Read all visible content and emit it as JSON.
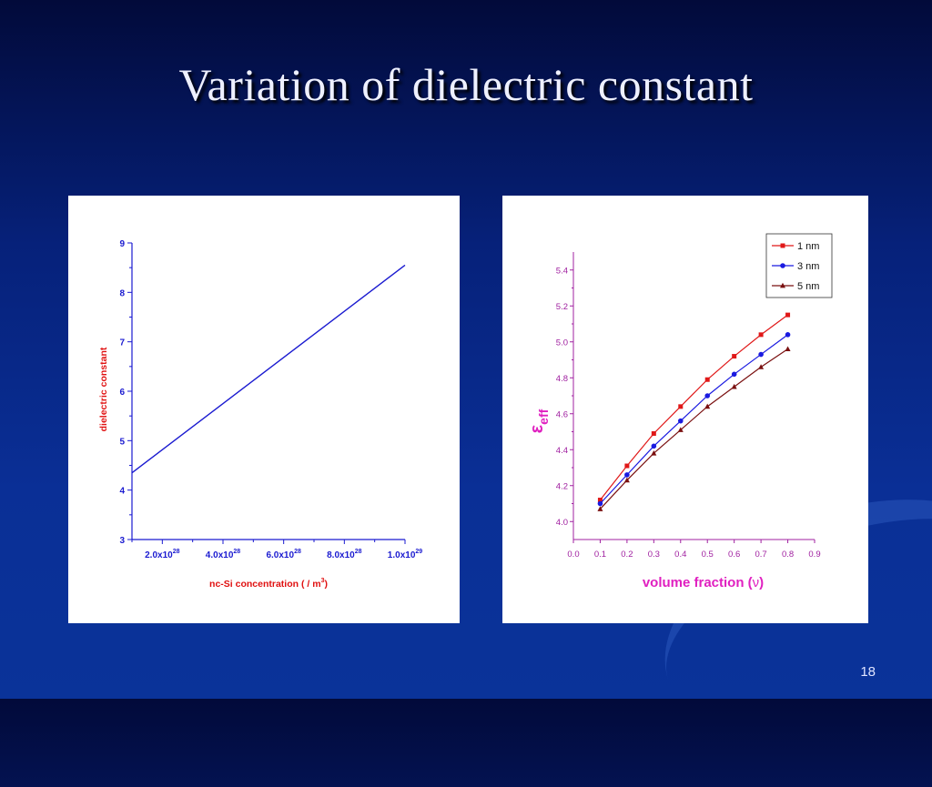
{
  "slide": {
    "title": "Variation of  dielectric constant",
    "page_number": "18"
  },
  "chart_data": [
    {
      "type": "line",
      "xlabel": "nc-Si concentration",
      "xlabel_unit": "( / m",
      "xlabel_unit_sup": "3",
      "xlabel_unit_close": ")",
      "ylabel": "dielectric constant",
      "xlim": [
        1e+28,
        1e+29
      ],
      "ylim": [
        3,
        9
      ],
      "x_ticks": [
        {
          "value": 2e+28,
          "base": "2.0x10",
          "exp": "28"
        },
        {
          "value": 4e+28,
          "base": "4.0x10",
          "exp": "28"
        },
        {
          "value": 6e+28,
          "base": "6.0x10",
          "exp": "28"
        },
        {
          "value": 8e+28,
          "base": "8.0x10",
          "exp": "28"
        },
        {
          "value": 1e+29,
          "base": "1.0x10",
          "exp": "29"
        }
      ],
      "y_ticks": [
        "3",
        "4",
        "5",
        "6",
        "7",
        "8",
        "9"
      ],
      "series": [
        {
          "x": [
            1e+28,
            1e+29
          ],
          "y": [
            4.35,
            8.55
          ],
          "color": "#1a1ad0"
        }
      ],
      "grid": false,
      "colors": {
        "axis": "#1a1ad0",
        "label": "#e01010"
      }
    },
    {
      "type": "line",
      "xlabel": "volume  fraction (",
      "xlabel_symbol": "ν",
      "xlabel_close": ")",
      "ylabel": "ε",
      "ylabel_sub": "eff",
      "xlim": [
        0.0,
        0.9
      ],
      "ylim": [
        3.9,
        5.5
      ],
      "x_ticks": [
        "0.0",
        "0.1",
        "0.2",
        "0.3",
        "0.4",
        "0.5",
        "0.6",
        "0.7",
        "0.8",
        "0.9"
      ],
      "y_ticks": [
        "4.0",
        "4.2",
        "4.4",
        "4.6",
        "4.8",
        "5.0",
        "5.2",
        "5.4"
      ],
      "categories": [
        0.1,
        0.2,
        0.3,
        0.4,
        0.5,
        0.6,
        0.7,
        0.8
      ],
      "series": [
        {
          "name": "1 nm",
          "marker": "square",
          "color": "#e01818",
          "values": [
            4.12,
            4.31,
            4.49,
            4.64,
            4.79,
            4.92,
            5.04,
            5.15
          ]
        },
        {
          "name": "3 nm",
          "marker": "circle",
          "color": "#1a1ae0",
          "values": [
            4.1,
            4.26,
            4.42,
            4.56,
            4.7,
            4.82,
            4.93,
            5.04
          ]
        },
        {
          "name": "5 nm",
          "marker": "triangle",
          "color": "#7a1010",
          "values": [
            4.07,
            4.23,
            4.38,
            4.51,
            4.64,
            4.75,
            4.86,
            4.96
          ]
        }
      ],
      "legend": "top-right",
      "grid": false,
      "colors": {
        "axis": "#a020a0",
        "label": "#e020c0"
      }
    }
  ]
}
